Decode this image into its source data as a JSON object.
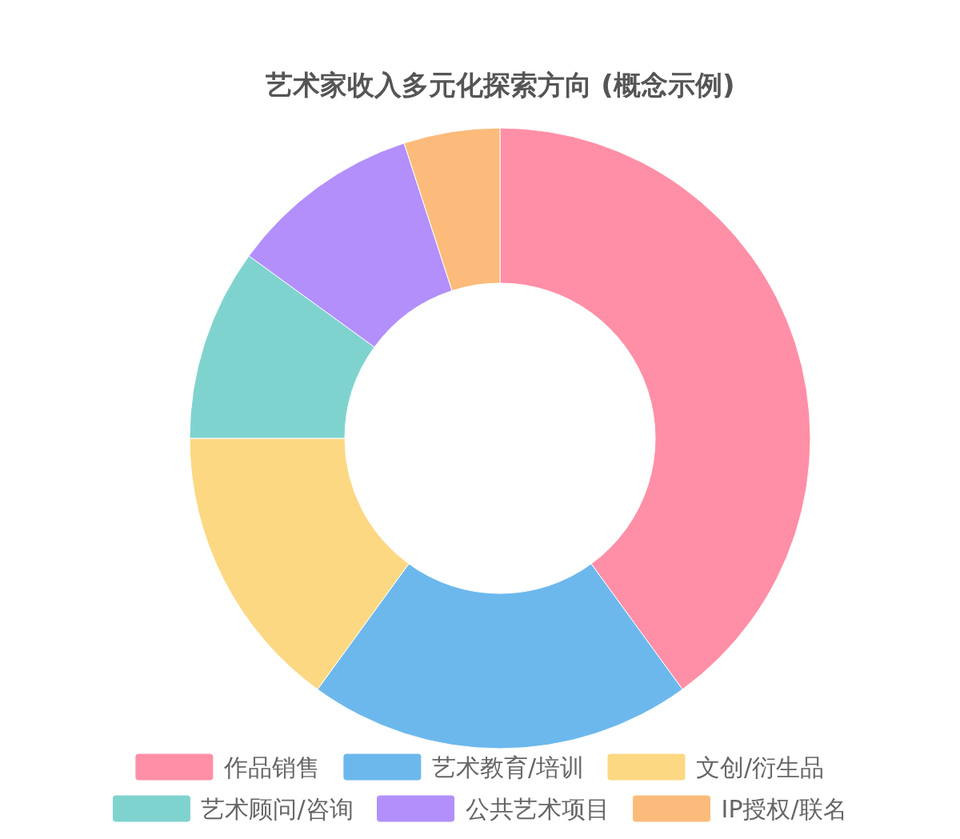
{
  "chart_data": {
    "type": "donut",
    "title": "艺术家收入多元化探索方向 (概念示例)",
    "categories": [
      "作品销售",
      "艺术教育/培训",
      "文创/衍生品",
      "艺术顾问/咨询",
      "公共艺术项目",
      "IP授权/联名"
    ],
    "values": [
      40,
      20,
      15,
      10,
      10,
      5
    ],
    "colors": [
      "#ff8fa6",
      "#6cb8ec",
      "#fcd883",
      "#7fd3cf",
      "#b28ffb",
      "#fcbb7a"
    ],
    "legend": "bottom"
  }
}
